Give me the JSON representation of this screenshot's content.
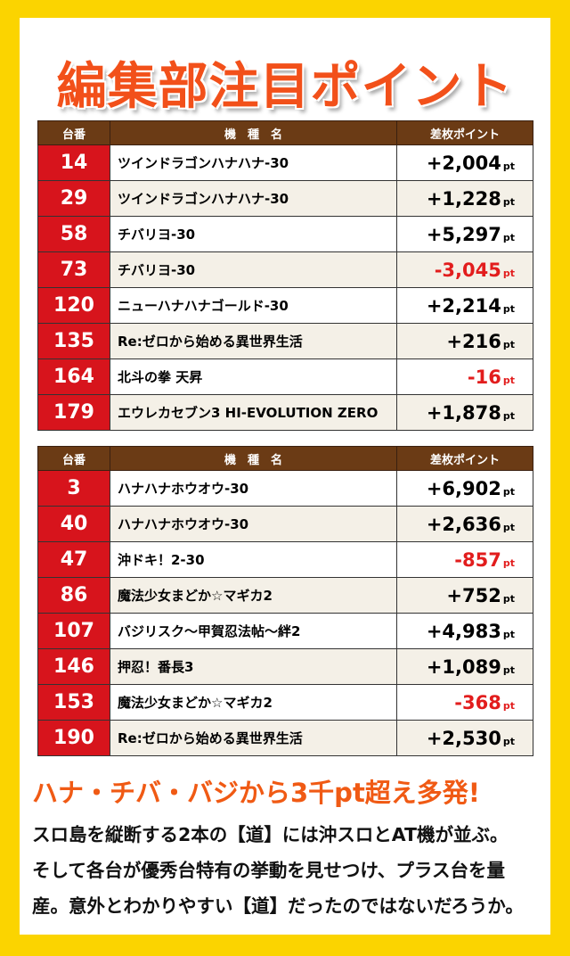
{
  "title": "編集部注目ポイント",
  "tables": [
    {
      "header": [
        "台番",
        "機　種　名",
        "差枚ポイント"
      ],
      "rows": [
        [
          "14",
          "ツインドラゴンハナハナ-30",
          "+2,004",
          "pt"
        ],
        [
          "29",
          "ツインドラゴンハナハナ-30",
          "+1,228",
          "pt"
        ],
        [
          "58",
          "チバリヨ-30",
          "+5,297",
          "pt"
        ],
        [
          "73",
          "チバリヨ-30",
          "-3,045",
          "pt"
        ],
        [
          "120",
          "ニューハナハナゴールド-30",
          "+2,214",
          "pt"
        ],
        [
          "135",
          "Re:ゼロから始める異世界生活",
          "+216",
          "pt"
        ],
        [
          "164",
          "北斗の拳 天昇",
          "-16",
          "pt"
        ],
        [
          "179",
          "エウレカセブン3 HI-EVOLUTION ZERO",
          "+1,878",
          "pt"
        ]
      ]
    },
    {
      "header": [
        "台番",
        "機　種　名",
        "差枚ポイント"
      ],
      "rows": [
        [
          "3",
          "ハナハナホウオウ-30",
          "+6,902",
          "pt"
        ],
        [
          "40",
          "ハナハナホウオウ-30",
          "+2,636",
          "pt"
        ],
        [
          "47",
          "沖ドキ！2-30",
          "-857",
          "pt"
        ],
        [
          "86",
          "魔法少女まどか☆マギカ2",
          "+752",
          "pt"
        ],
        [
          "107",
          "バジリスク～甲賀忍法帖～絆2",
          "+4,983",
          "pt"
        ],
        [
          "146",
          "押忍！番長3",
          "+1,089",
          "pt"
        ],
        [
          "153",
          "魔法少女まどか☆マギカ2",
          "-368",
          "pt"
        ],
        [
          "190",
          "Re:ゼロから始める異世界生活",
          "+2,530",
          "pt"
        ]
      ]
    }
  ],
  "subtitle": "ハナ・チバ・バジから3千pt超え多発!",
  "body": [
    "スロ島を縦断する2本の【道】には沖スロとAT機が並ぶ。",
    "そして各台が優秀台特有の挙動を見せつけ、プラス台を量",
    "産。意外とわかりやすい【道】だったのではないだろうか。"
  ]
}
